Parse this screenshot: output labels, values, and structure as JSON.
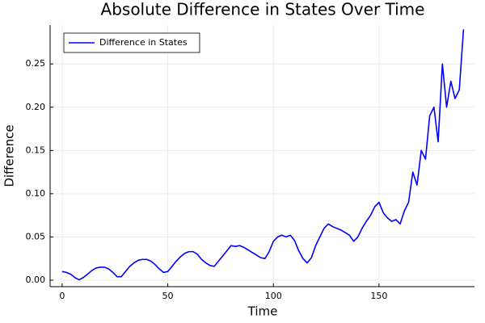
{
  "chart_data": {
    "type": "line",
    "title": "Absolute Difference in States Over Time",
    "x_label": "Time",
    "y_label": "Difference",
    "x": [
      0,
      2,
      4,
      6,
      8,
      10,
      12,
      14,
      16,
      18,
      20,
      22,
      24,
      26,
      28,
      30,
      32,
      34,
      36,
      38,
      40,
      42,
      44,
      46,
      48,
      50,
      52,
      54,
      56,
      58,
      60,
      62,
      64,
      66,
      68,
      70,
      72,
      74,
      76,
      78,
      80,
      82,
      84,
      86,
      88,
      90,
      92,
      94,
      96,
      98,
      100,
      102,
      104,
      106,
      108,
      110,
      112,
      114,
      116,
      118,
      120,
      122,
      124,
      126,
      128,
      130,
      132,
      134,
      136,
      138,
      140,
      142,
      144,
      146,
      148,
      150,
      152,
      154,
      156,
      158,
      160,
      162,
      164,
      166,
      168,
      170,
      172,
      174,
      176,
      178,
      180,
      182,
      184,
      186,
      188,
      190
    ],
    "series": [
      {
        "name": "Difference in States",
        "color": "#0000ff",
        "values": [
          0.01,
          0.009,
          0.007,
          0.003,
          0.0005,
          0.003,
          0.007,
          0.011,
          0.014,
          0.015,
          0.015,
          0.013,
          0.009,
          0.004,
          0.004,
          0.01,
          0.016,
          0.02,
          0.023,
          0.024,
          0.024,
          0.022,
          0.018,
          0.013,
          0.009,
          0.01,
          0.016,
          0.022,
          0.027,
          0.031,
          0.033,
          0.033,
          0.03,
          0.024,
          0.02,
          0.017,
          0.016,
          0.022,
          0.028,
          0.034,
          0.04,
          0.039,
          0.04,
          0.038,
          0.035,
          0.032,
          0.029,
          0.026,
          0.025,
          0.033,
          0.045,
          0.05,
          0.052,
          0.05,
          0.052,
          0.046,
          0.034,
          0.025,
          0.02,
          0.026,
          0.04,
          0.05,
          0.06,
          0.065,
          0.062,
          0.06,
          0.058,
          0.055,
          0.052,
          0.045,
          0.05,
          0.06,
          0.068,
          0.075,
          0.085,
          0.09,
          0.078,
          0.072,
          0.068,
          0.07,
          0.065,
          0.08,
          0.09,
          0.125,
          0.11,
          0.15,
          0.14,
          0.19,
          0.2,
          0.16,
          0.25,
          0.2,
          0.23,
          0.21,
          0.22,
          0.29
        ]
      }
    ],
    "xlim": [
      -5.7,
      195.2
    ],
    "ylim": [
      -0.0075,
      0.295
    ],
    "xticks": [
      0,
      50,
      100,
      150
    ],
    "yticks": [
      {
        "value": 0,
        "label": "0.00"
      },
      0.05,
      {
        "value": 0.1,
        "label": "0.10"
      },
      0.15,
      {
        "value": 0.2,
        "label": "0.20"
      },
      0.25
    ],
    "grid": true,
    "legend": "top-left"
  }
}
